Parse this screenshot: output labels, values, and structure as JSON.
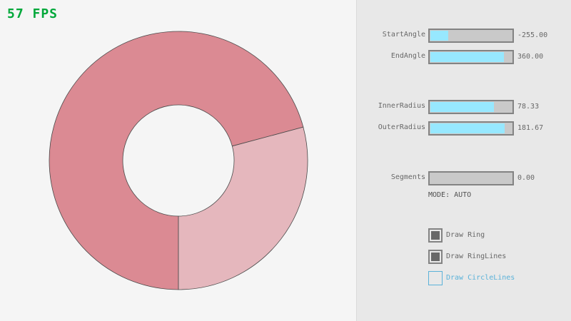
{
  "fps": "57 FPS",
  "ring": {
    "colors": {
      "single": "#e5b7bd",
      "double": "#db8a93",
      "outline": "#4a4a4a",
      "inner": "#f5f5f5"
    }
  },
  "sliders": [
    {
      "label": "StartAngle",
      "value": "-255.00",
      "fraction": 0.217
    },
    {
      "label": "EndAngle",
      "value": "360.00",
      "fraction": 0.9
    },
    {
      "label": "InnerRadius",
      "value": "78.33",
      "fraction": 0.783
    },
    {
      "label": "OuterRadius",
      "value": "181.67",
      "fraction": 0.908
    },
    {
      "label": "Segments",
      "value": "0.00",
      "fraction": 0
    }
  ],
  "mode": "MODE: AUTO",
  "checkboxes": [
    {
      "label": "Draw Ring",
      "checked": true
    },
    {
      "label": "Draw RingLines",
      "checked": true
    },
    {
      "label": "Draw CircleLines",
      "checked": false
    }
  ],
  "colors": {
    "fps": "#00a83a",
    "slider_fill": "#97e8ff",
    "focus": "#5bb2d9"
  }
}
